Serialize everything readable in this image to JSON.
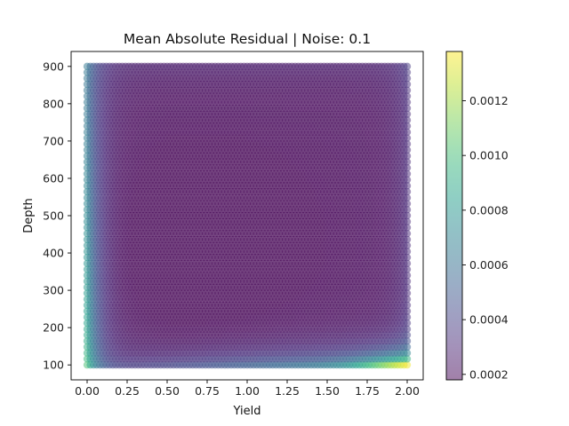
{
  "chart_data": {
    "type": "heatmap",
    "render": "scatter-grid",
    "title": "Mean Absolute Residual | Noise: 0.1",
    "xlabel": "Yield",
    "ylabel": "Depth",
    "xlim": [
      -0.1,
      2.1
    ],
    "ylim": [
      60,
      940
    ],
    "x_ticks": [
      0.0,
      0.25,
      0.5,
      0.75,
      1.0,
      1.25,
      1.5,
      1.75,
      2.0
    ],
    "x_tick_labels": [
      "0.00",
      "0.25",
      "0.50",
      "0.75",
      "1.00",
      "1.25",
      "1.50",
      "1.75",
      "2.00"
    ],
    "y_ticks": [
      100,
      200,
      300,
      400,
      500,
      600,
      700,
      800,
      900
    ],
    "y_tick_labels": [
      "100",
      "200",
      "300",
      "400",
      "500",
      "600",
      "700",
      "800",
      "900"
    ],
    "x_grid": {
      "start": 0.0,
      "end": 2.0,
      "count": 101
    },
    "y_grid": {
      "start": 100,
      "end": 900,
      "count": 51
    },
    "colormap": "viridis",
    "marker_alpha": 0.5,
    "colorbar": {
      "min": 0.00018,
      "max": 0.00138,
      "ticks": [
        0.0002,
        0.0004,
        0.0006,
        0.0008,
        0.001,
        0.0012
      ],
      "tick_labels": [
        "0.0002",
        "0.0004",
        "0.0006",
        "0.0008",
        "0.0010",
        "0.0012"
      ]
    },
    "value_model": {
      "base": 0.00019,
      "left_edge": {
        "amplitude": 0.00072,
        "decay_x": 0.08,
        "depth_factor_top": 0.55
      },
      "bottom_edge": {
        "amplitude": 0.00055,
        "decay_depth": 40
      },
      "bottom_right": {
        "amplitude": 0.0005,
        "x_center": 2.0,
        "x_width": 0.3,
        "decay_depth": 25
      },
      "right_edge": {
        "amplitude": 0.00012,
        "decay_x": 0.08
      },
      "top_edge": {
        "amplitude": 6e-05,
        "decay_depth": 60
      },
      "center_well": {
        "amplitude": -5e-05,
        "x_center": 0.7,
        "depth_center": 420
      }
    }
  }
}
